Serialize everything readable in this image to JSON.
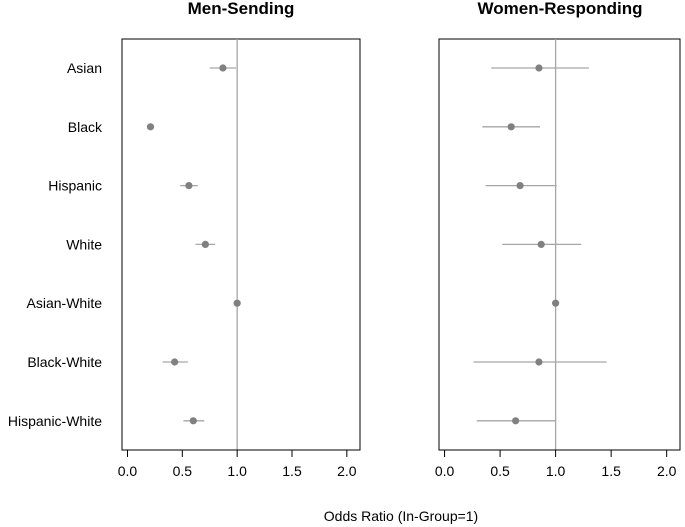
{
  "chart_data": {
    "type": "scatter",
    "subtype": "dot-and-whisker (odds ratio with confidence intervals)",
    "xlabel": "Odds Ratio (In-Group=1)",
    "xlim": [
      -0.05,
      2.12
    ],
    "xticks": [
      "0.0",
      "0.5",
      "1.0",
      "1.5",
      "2.0"
    ],
    "xtick_values": [
      0,
      0.5,
      1,
      1.5,
      2
    ],
    "reference_line": 1.0,
    "categories": [
      "Asian",
      "Black",
      "Hispanic",
      "White",
      "Asian-White",
      "Black-White",
      "Hispanic-White"
    ],
    "panels": [
      {
        "title": "Men-Sending",
        "points": [
          {
            "label": "Asian",
            "value": 0.87,
            "low": 0.75,
            "high": 0.99
          },
          {
            "label": "Black",
            "value": 0.21,
            "low": 0.18,
            "high": 0.24
          },
          {
            "label": "Hispanic",
            "value": 0.56,
            "low": 0.48,
            "high": 0.64
          },
          {
            "label": "White",
            "value": 0.71,
            "low": 0.62,
            "high": 0.8
          },
          {
            "label": "Asian-White",
            "value": 1.0,
            "low": 1.0,
            "high": 1.0
          },
          {
            "label": "Black-White",
            "value": 0.43,
            "low": 0.32,
            "high": 0.55
          },
          {
            "label": "Hispanic-White",
            "value": 0.6,
            "low": 0.51,
            "high": 0.7
          }
        ]
      },
      {
        "title": "Women-Responding",
        "points": [
          {
            "label": "Asian",
            "value": 0.85,
            "low": 0.42,
            "high": 1.3
          },
          {
            "label": "Black",
            "value": 0.6,
            "low": 0.34,
            "high": 0.86
          },
          {
            "label": "Hispanic",
            "value": 0.68,
            "low": 0.37,
            "high": 1.01
          },
          {
            "label": "White",
            "value": 0.87,
            "low": 0.52,
            "high": 1.23
          },
          {
            "label": "Asian-White",
            "value": 1.0,
            "low": 1.0,
            "high": 1.0
          },
          {
            "label": "Black-White",
            "value": 0.85,
            "low": 0.26,
            "high": 1.46
          },
          {
            "label": "Hispanic-White",
            "value": 0.64,
            "low": 0.29,
            "high": 1.0
          }
        ]
      }
    ],
    "grid": false,
    "legend": "none",
    "colors": {
      "point": "#808080",
      "whisker": "#a6a6a6",
      "reference_line": "#a6a6a6",
      "frame": "#000000"
    }
  }
}
